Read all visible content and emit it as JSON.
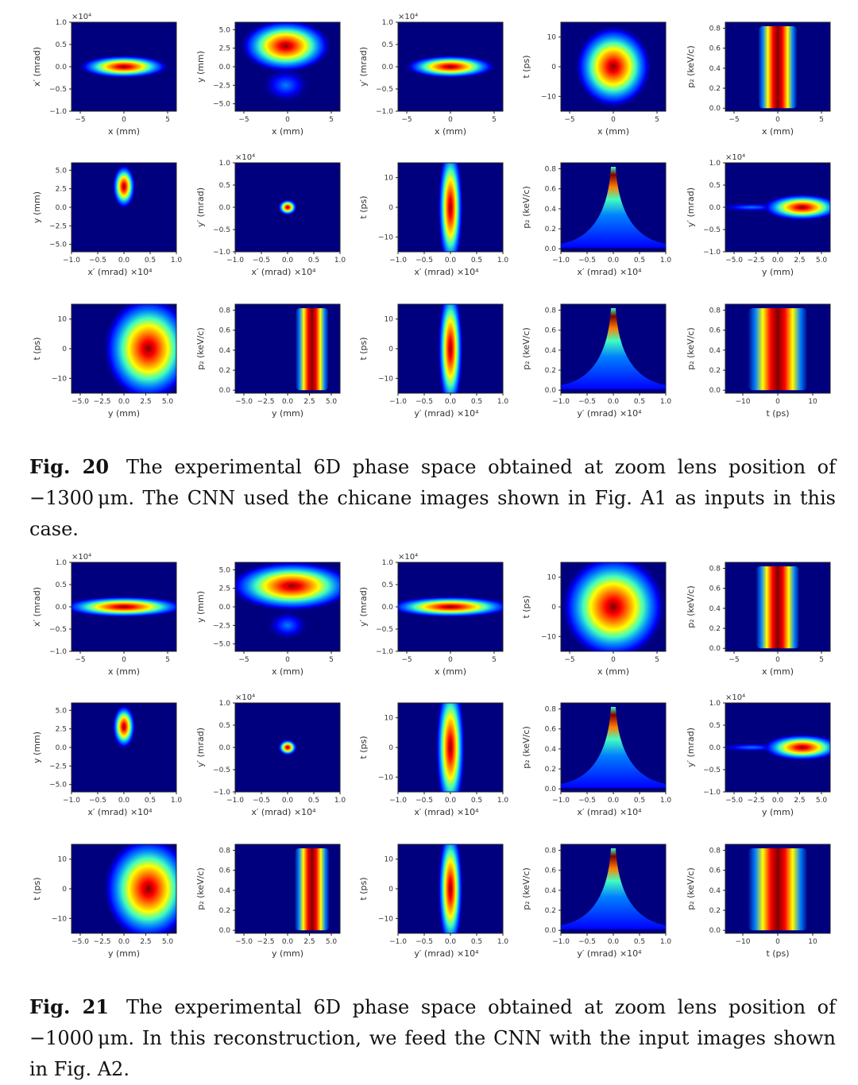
{
  "figures": [
    {
      "label": "Fig. 20",
      "caption": "The experimental 6D phase space obtained at zoom lens position of −1300 μm. The CNN used the chicane images shown in Fig. A1 as inputs in this case."
    },
    {
      "label": "Fig. 21",
      "caption": "The experimental 6D phase space obtained at zoom lens position of −1000 μm. In this reconstruction, we feed the CNN with the input images shown in Fig. A2."
    }
  ],
  "colormap": [
    "#00007f",
    "#0000ff",
    "#0080ff",
    "#40ffc0",
    "#ffff00",
    "#ff8000",
    "#ff0000",
    "#800000"
  ],
  "axes": {
    "x": {
      "label": "x (mm)",
      "ticks": [
        -5,
        0,
        5
      ],
      "range": [
        -6,
        6
      ]
    },
    "xp": {
      "label": "x′ (mrad)",
      "ticks": [
        -1.0,
        -0.5,
        0.0,
        0.5,
        1.0
      ],
      "range": [
        -1,
        1
      ],
      "mult": "×10⁴"
    },
    "y": {
      "label": "y (mm)",
      "ticks": [
        -5.0,
        -2.5,
        0.0,
        2.5,
        5.0
      ],
      "range": [
        -6,
        6
      ]
    },
    "yp": {
      "label": "y′ (mrad)",
      "ticks": [
        -1.0,
        -0.5,
        0.0,
        0.5,
        1.0
      ],
      "range": [
        -1,
        1
      ],
      "mult": "×10⁴"
    },
    "t": {
      "label": "t (ps)",
      "ticks": [
        -10,
        0,
        10
      ],
      "range": [
        -15,
        15
      ]
    },
    "pz": {
      "label": "p₂ (keV/c)",
      "ticks": [
        0.0,
        0.2,
        0.4,
        0.6,
        0.8
      ],
      "range": [
        -0.03,
        0.86
      ]
    }
  },
  "chart_data": [
    {
      "type": "heatmap",
      "figure": "Fig. 20",
      "panels": [
        {
          "x": "x",
          "y": "xp",
          "blobs": [
            {
              "kind": "gauss",
              "cx": 0,
              "cy": 0,
              "sx": 2.6,
              "sy": 0.13,
              "peak": 1
            }
          ]
        },
        {
          "x": "x",
          "y": "y",
          "blobs": [
            {
              "kind": "gauss",
              "cx": -0.2,
              "cy": -2.5,
              "sx": 1.4,
              "sy": 1.2,
              "peak": 0.25
            },
            {
              "kind": "gauss",
              "cx": -0.2,
              "cy": 2.8,
              "sx": 2.6,
              "sy": 1.8,
              "peak": 1
            }
          ]
        },
        {
          "x": "x",
          "y": "yp",
          "blobs": [
            {
              "kind": "gauss",
              "cx": 0,
              "cy": 0,
              "sx": 2.6,
              "sy": 0.13,
              "peak": 1
            }
          ]
        },
        {
          "x": "x",
          "y": "t",
          "blobs": [
            {
              "kind": "gauss",
              "cx": 0,
              "cy": 0,
              "sx": 2.2,
              "sy": 7,
              "peak": 1
            }
          ]
        },
        {
          "x": "x",
          "y": "pz",
          "blobs": [
            {
              "kind": "band",
              "cx": 0,
              "w": 4.5,
              "top": 0.82,
              "peak": 1
            }
          ]
        },
        {
          "x": "xp",
          "y": "y",
          "blobs": [
            {
              "kind": "gauss",
              "cx": 0,
              "cy": 2.8,
              "sx": 0.11,
              "sy": 1.5,
              "peak": 1
            }
          ]
        },
        {
          "x": "xp",
          "y": "yp",
          "blobs": [
            {
              "kind": "gauss",
              "cx": 0,
              "cy": 0,
              "sx": 0.09,
              "sy": 0.09,
              "peak": 1
            }
          ]
        },
        {
          "x": "xp",
          "y": "t",
          "blobs": [
            {
              "kind": "gauss",
              "cx": 0,
              "cy": 0,
              "sx": 0.12,
              "sy": 11,
              "peak": 1
            }
          ]
        },
        {
          "x": "xp",
          "y": "pz",
          "blobs": [
            {
              "kind": "cusp",
              "cx": 0,
              "top": 0.82,
              "peak": 1
            }
          ]
        },
        {
          "x": "y",
          "y": "yp",
          "blobs": [
            {
              "kind": "gauss",
              "cx": -3,
              "cy": 0,
              "sx": 2,
              "sy": 0.05,
              "peak": 0.25
            },
            {
              "kind": "gauss",
              "cx": 2.8,
              "cy": 0,
              "sx": 2.3,
              "sy": 0.15,
              "peak": 1
            }
          ]
        },
        {
          "x": "y",
          "y": "t",
          "blobs": [
            {
              "kind": "gauss",
              "cx": 2.8,
              "cy": 0,
              "sx": 2.6,
              "sy": 9,
              "peak": 1
            }
          ]
        },
        {
          "x": "y",
          "y": "pz",
          "blobs": [
            {
              "kind": "band",
              "cx": 2.8,
              "w": 3.8,
              "top": 0.82,
              "peak": 1
            }
          ]
        },
        {
          "x": "yp",
          "y": "t",
          "blobs": [
            {
              "kind": "gauss",
              "cx": 0,
              "cy": 0,
              "sx": 0.12,
              "sy": 11,
              "peak": 1
            }
          ]
        },
        {
          "x": "yp",
          "y": "pz",
          "blobs": [
            {
              "kind": "cusp",
              "cx": 0,
              "top": 0.82,
              "peak": 1
            }
          ]
        },
        {
          "x": "t",
          "y": "pz",
          "blobs": [
            {
              "kind": "band",
              "cx": 0,
              "w": 17,
              "top": 0.82,
              "peak": 1
            }
          ]
        }
      ]
    },
    {
      "type": "heatmap",
      "figure": "Fig. 21",
      "panels": [
        {
          "x": "x",
          "y": "xp",
          "blobs": [
            {
              "kind": "gauss",
              "cx": 0,
              "cy": 0,
              "sx": 3.6,
              "sy": 0.12,
              "peak": 1
            }
          ]
        },
        {
          "x": "x",
          "y": "y",
          "blobs": [
            {
              "kind": "gauss",
              "cx": 0,
              "cy": -2.5,
              "sx": 1.2,
              "sy": 1,
              "peak": 0.35
            },
            {
              "kind": "gauss",
              "cx": 0.5,
              "cy": 2.8,
              "sx": 3.6,
              "sy": 1.7,
              "peak": 1
            }
          ]
        },
        {
          "x": "x",
          "y": "yp",
          "blobs": [
            {
              "kind": "gauss",
              "cx": 0,
              "cy": 0,
              "sx": 3.6,
              "sy": 0.12,
              "peak": 1
            }
          ]
        },
        {
          "x": "x",
          "y": "t",
          "blobs": [
            {
              "kind": "gauss",
              "cx": 0,
              "cy": 0,
              "sx": 3,
              "sy": 9,
              "peak": 1
            }
          ]
        },
        {
          "x": "x",
          "y": "pz",
          "blobs": [
            {
              "kind": "band",
              "cx": 0,
              "w": 5,
              "top": 0.82,
              "peak": 1
            }
          ]
        },
        {
          "x": "xp",
          "y": "y",
          "blobs": [
            {
              "kind": "gauss",
              "cx": 0,
              "cy": 2.8,
              "sx": 0.11,
              "sy": 1.5,
              "peak": 1
            }
          ]
        },
        {
          "x": "xp",
          "y": "yp",
          "blobs": [
            {
              "kind": "gauss",
              "cx": 0,
              "cy": 0,
              "sx": 0.09,
              "sy": 0.09,
              "peak": 1
            }
          ]
        },
        {
          "x": "xp",
          "y": "t",
          "blobs": [
            {
              "kind": "gauss",
              "cx": 0,
              "cy": 0,
              "sx": 0.14,
              "sy": 12,
              "peak": 1
            }
          ]
        },
        {
          "x": "xp",
          "y": "pz",
          "blobs": [
            {
              "kind": "cusp",
              "cx": 0,
              "top": 0.82,
              "peak": 1
            }
          ]
        },
        {
          "x": "y",
          "y": "yp",
          "blobs": [
            {
              "kind": "gauss",
              "cx": -3,
              "cy": 0,
              "sx": 2,
              "sy": 0.05,
              "peak": 0.3
            },
            {
              "kind": "gauss",
              "cx": 2.8,
              "cy": 0,
              "sx": 2.3,
              "sy": 0.15,
              "peak": 1
            }
          ]
        },
        {
          "x": "y",
          "y": "t",
          "blobs": [
            {
              "kind": "gauss",
              "cx": 2.8,
              "cy": 0,
              "sx": 2.6,
              "sy": 9,
              "peak": 1
            }
          ]
        },
        {
          "x": "y",
          "y": "pz",
          "blobs": [
            {
              "kind": "band",
              "cx": 2.8,
              "w": 4,
              "top": 0.82,
              "peak": 1
            }
          ]
        },
        {
          "x": "yp",
          "y": "t",
          "blobs": [
            {
              "kind": "gauss",
              "cx": 0,
              "cy": 0,
              "sx": 0.12,
              "sy": 11,
              "peak": 1
            }
          ]
        },
        {
          "x": "yp",
          "y": "pz",
          "blobs": [
            {
              "kind": "cusp",
              "cx": 0,
              "top": 0.82,
              "peak": 1
            }
          ]
        },
        {
          "x": "t",
          "y": "pz",
          "blobs": [
            {
              "kind": "band",
              "cx": 0,
              "w": 17,
              "top": 0.82,
              "peak": 1
            }
          ]
        }
      ]
    }
  ]
}
